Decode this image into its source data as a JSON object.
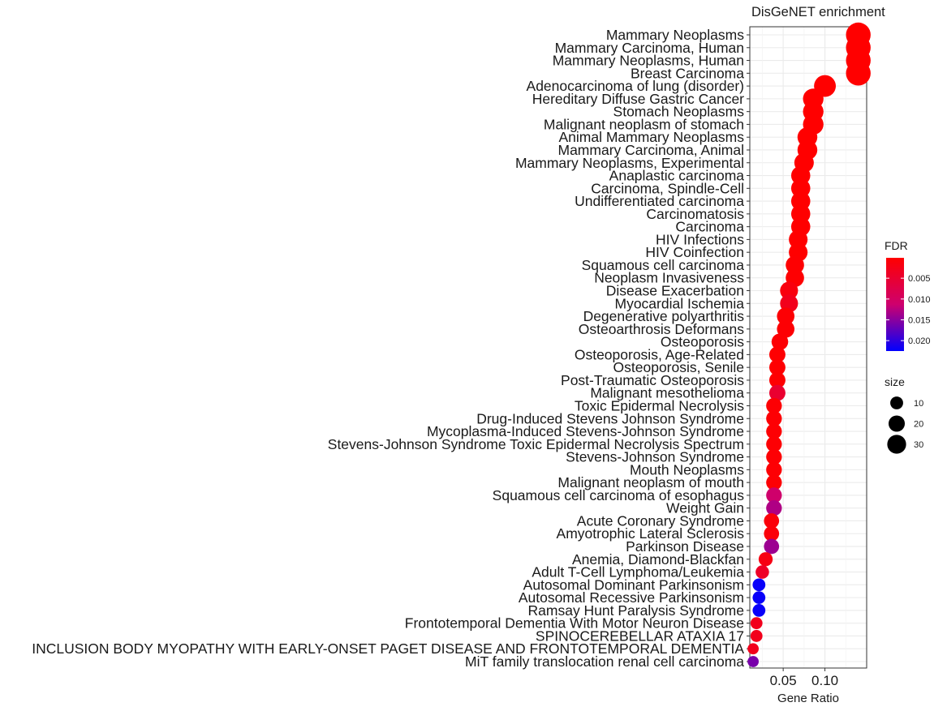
{
  "chart_data": {
    "type": "scatter",
    "title": "DisGeNET enrichment",
    "xlabel": "Gene Ratio",
    "ylabel": "",
    "xlim": [
      0.01,
      0.15
    ],
    "xticks": [
      0.05,
      0.1
    ],
    "xtick_labels": [
      "0.05",
      "0.10"
    ],
    "grid": true,
    "points": [
      {
        "label": "Mammary Neoplasms",
        "x": 0.14,
        "fdr": 0.0001,
        "size": 36
      },
      {
        "label": "Mammary Carcinoma, Human",
        "x": 0.14,
        "fdr": 0.0001,
        "size": 36
      },
      {
        "label": "Mammary Neoplasms, Human",
        "x": 0.14,
        "fdr": 0.0001,
        "size": 36
      },
      {
        "label": "Breast Carcinoma",
        "x": 0.14,
        "fdr": 0.0001,
        "size": 36
      },
      {
        "label": "Adenocarcinoma of lung (disorder)",
        "x": 0.1,
        "fdr": 0.0001,
        "size": 26
      },
      {
        "label": "Hereditary Diffuse Gastric Cancer",
        "x": 0.086,
        "fdr": 0.0001,
        "size": 22
      },
      {
        "label": "Stomach Neoplasms",
        "x": 0.086,
        "fdr": 0.0001,
        "size": 22
      },
      {
        "label": "Malignant neoplasm of stomach",
        "x": 0.086,
        "fdr": 0.0001,
        "size": 22
      },
      {
        "label": "Animal Mammary Neoplasms",
        "x": 0.079,
        "fdr": 0.0001,
        "size": 20
      },
      {
        "label": "Mammary Carcinoma, Animal",
        "x": 0.079,
        "fdr": 0.0001,
        "size": 20
      },
      {
        "label": "Mammary Neoplasms, Experimental",
        "x": 0.075,
        "fdr": 0.0001,
        "size": 19
      },
      {
        "label": "Anaplastic carcinoma",
        "x": 0.071,
        "fdr": 0.0001,
        "size": 18
      },
      {
        "label": "Carcinoma, Spindle-Cell",
        "x": 0.071,
        "fdr": 0.0001,
        "size": 18
      },
      {
        "label": "Undifferentiated carcinoma",
        "x": 0.071,
        "fdr": 0.0001,
        "size": 18
      },
      {
        "label": "Carcinomatosis",
        "x": 0.071,
        "fdr": 0.0001,
        "size": 18
      },
      {
        "label": "Carcinoma",
        "x": 0.071,
        "fdr": 0.0001,
        "size": 18
      },
      {
        "label": "HIV Infections",
        "x": 0.068,
        "fdr": 0.0001,
        "size": 17
      },
      {
        "label": "HIV Coinfection",
        "x": 0.068,
        "fdr": 0.0001,
        "size": 17
      },
      {
        "label": "Squamous cell carcinoma",
        "x": 0.064,
        "fdr": 0.0003,
        "size": 16
      },
      {
        "label": "Neoplasm Invasiveness",
        "x": 0.064,
        "fdr": 0.0003,
        "size": 16
      },
      {
        "label": "Disease Exacerbation",
        "x": 0.057,
        "fdr": 0.0015,
        "size": 15
      },
      {
        "label": "Myocardial Ischemia",
        "x": 0.057,
        "fdr": 0.003,
        "size": 15
      },
      {
        "label": "Degenerative polyarthritis",
        "x": 0.053,
        "fdr": 0.0005,
        "size": 14
      },
      {
        "label": "Osteoarthrosis Deformans",
        "x": 0.053,
        "fdr": 0.0005,
        "size": 14
      },
      {
        "label": "Osteoporosis",
        "x": 0.046,
        "fdr": 0.0005,
        "size": 12
      },
      {
        "label": "Osteoporosis, Age-Related",
        "x": 0.043,
        "fdr": 0.0003,
        "size": 11
      },
      {
        "label": "Osteoporosis, Senile",
        "x": 0.043,
        "fdr": 0.0003,
        "size": 11
      },
      {
        "label": "Post-Traumatic Osteoporosis",
        "x": 0.043,
        "fdr": 0.0003,
        "size": 11
      },
      {
        "label": "Malignant mesothelioma",
        "x": 0.043,
        "fdr": 0.005,
        "size": 11
      },
      {
        "label": "Toxic Epidermal Necrolysis",
        "x": 0.039,
        "fdr": 0.0005,
        "size": 10
      },
      {
        "label": "Drug-Induced Stevens Johnson Syndrome",
        "x": 0.039,
        "fdr": 0.0005,
        "size": 10
      },
      {
        "label": "Mycoplasma-Induced Stevens-Johnson Syndrome",
        "x": 0.039,
        "fdr": 0.0005,
        "size": 10
      },
      {
        "label": "Stevens-Johnson Syndrome Toxic Epidermal Necrolysis Spectrum",
        "x": 0.039,
        "fdr": 0.0005,
        "size": 10
      },
      {
        "label": "Stevens-Johnson Syndrome",
        "x": 0.039,
        "fdr": 0.0005,
        "size": 10
      },
      {
        "label": "Mouth Neoplasms",
        "x": 0.039,
        "fdr": 0.0005,
        "size": 10
      },
      {
        "label": "Malignant neoplasm of mouth",
        "x": 0.039,
        "fdr": 0.0005,
        "size": 10
      },
      {
        "label": "Squamous cell carcinoma of esophagus",
        "x": 0.039,
        "fdr": 0.011,
        "size": 10
      },
      {
        "label": "Weight Gain",
        "x": 0.039,
        "fdr": 0.013,
        "size": 10
      },
      {
        "label": "Acute Coronary Syndrome",
        "x": 0.036,
        "fdr": 0.001,
        "size": 9
      },
      {
        "label": "Amyotrophic Lateral Sclerosis",
        "x": 0.036,
        "fdr": 0.001,
        "size": 9
      },
      {
        "label": "Parkinson Disease",
        "x": 0.036,
        "fdr": 0.014,
        "size": 9
      },
      {
        "label": "Anemia, Diamond-Blackfan",
        "x": 0.029,
        "fdr": 0.002,
        "size": 7
      },
      {
        "label": "Adult T-Cell Lymphoma/Leukemia",
        "x": 0.025,
        "fdr": 0.004,
        "size": 6
      },
      {
        "label": "Autosomal Dominant Parkinsonism",
        "x": 0.021,
        "fdr": 0.022,
        "size": 5
      },
      {
        "label": "Autosomal Recessive Parkinsonism",
        "x": 0.021,
        "fdr": 0.022,
        "size": 5
      },
      {
        "label": "Ramsay Hunt Paralysis Syndrome",
        "x": 0.021,
        "fdr": 0.022,
        "size": 5
      },
      {
        "label": "Frontotemporal Dementia With Motor Neuron Disease",
        "x": 0.018,
        "fdr": 0.003,
        "size": 4
      },
      {
        "label": "SPINOCEREBELLAR ATAXIA 17",
        "x": 0.018,
        "fdr": 0.003,
        "size": 4
      },
      {
        "label": "INCLUSION BODY MYOPATHY WITH EARLY-ONSET PAGET DISEASE AND FRONTOTEMPORAL DEMENTIA",
        "x": 0.014,
        "fdr": 0.003,
        "size": 3
      },
      {
        "label": "MiT family translocation renal cell carcinoma",
        "x": 0.014,
        "fdr": 0.016,
        "size": 3
      }
    ],
    "legend": {
      "placement": "right",
      "color": {
        "title": "FDR",
        "range": [
          0.0001,
          0.0225
        ],
        "ticks": [
          0.005,
          0.01,
          0.015,
          0.02
        ],
        "tick_labels": [
          "0.005",
          "0.010",
          "0.015",
          "0.020"
        ],
        "low_color": "#ff0000",
        "high_color": "#0000ff"
      },
      "size": {
        "title": "size",
        "values": [
          10,
          20,
          30
        ],
        "labels": [
          "10",
          "20",
          "30"
        ]
      }
    }
  }
}
